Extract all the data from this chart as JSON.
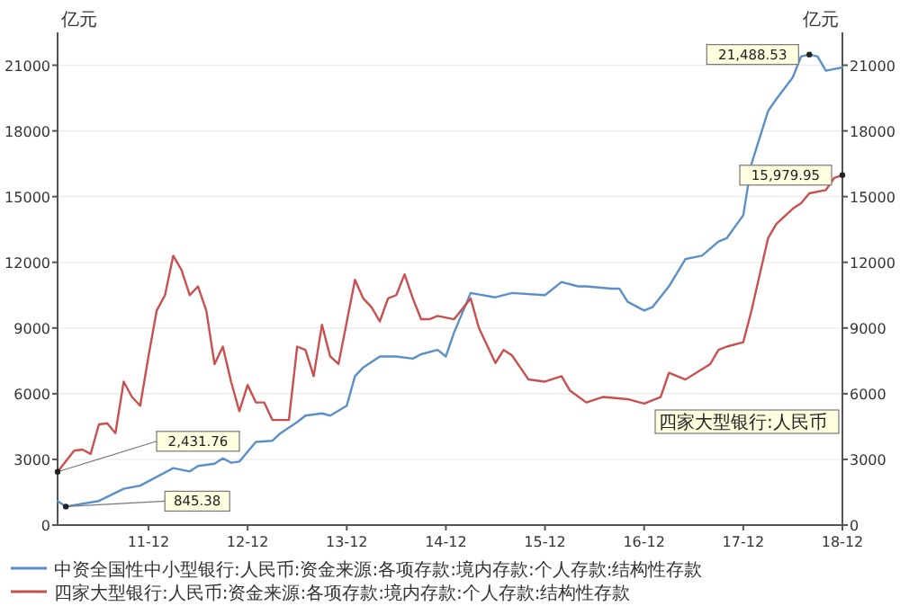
{
  "chart_data": {
    "type": "line",
    "ylabel": "亿元",
    "y2label": "亿元",
    "xlim": [
      "2011-01",
      "2018-12"
    ],
    "xticks": [
      {
        "value": "2011-12",
        "label": "11-12"
      },
      {
        "value": "2012-12",
        "label": "12-12"
      },
      {
        "value": "2013-12",
        "label": "13-12"
      },
      {
        "value": "2014-12",
        "label": "14-12"
      },
      {
        "value": "2015-12",
        "label": "15-12"
      },
      {
        "value": "2016-12",
        "label": "16-12"
      },
      {
        "value": "2017-12",
        "label": "17-12"
      },
      {
        "value": "2018-12",
        "label": "18-12"
      }
    ],
    "ylim": [
      0,
      22500
    ],
    "yticks": [
      0,
      3000,
      6000,
      9000,
      12000,
      15000,
      18000,
      21000
    ],
    "y2lim": [
      0,
      22500
    ],
    "y2ticks": [
      0,
      3000,
      6000,
      9000,
      12000,
      15000,
      18000,
      21000
    ],
    "grid": "y",
    "legend": "bottom",
    "line_style": "solid",
    "marker": "none",
    "series": [
      {
        "name": "中资全国性中小型银行:人民币:资金来源:各项存款:境内存款:个人存款:结构性存款",
        "color": "#5b8fc9",
        "x": [
          "2011-01",
          "2011-02",
          "2011-06",
          "2011-09",
          "2011-11",
          "2012-01",
          "2012-03",
          "2012-05",
          "2012-06",
          "2012-08",
          "2012-09",
          "2012-10",
          "2012-11",
          "2013-01",
          "2013-03",
          "2013-04",
          "2013-06",
          "2013-07",
          "2013-09",
          "2013-10",
          "2013-12",
          "2014-01",
          "2014-02",
          "2014-04",
          "2014-06",
          "2014-08",
          "2014-09",
          "2014-11",
          "2014-12",
          "2015-01",
          "2015-03",
          "2015-06",
          "2015-08",
          "2015-12",
          "2016-02",
          "2016-04",
          "2016-05",
          "2016-08",
          "2016-09",
          "2016-10",
          "2016-12",
          "2017-01",
          "2017-03",
          "2017-05",
          "2017-07",
          "2017-09",
          "2017-10",
          "2017-12",
          "2018-01",
          "2018-03",
          "2018-04",
          "2018-06",
          "2018-07",
          "2018-08",
          "2018-09",
          "2018-10",
          "2018-12"
        ],
        "values": [
          1100,
          845.38,
          1100,
          1660,
          1800,
          2200,
          2600,
          2450,
          2700,
          2800,
          3050,
          2850,
          2900,
          3800,
          3850,
          4200,
          4700,
          5000,
          5100,
          5000,
          5450,
          6800,
          7200,
          7700,
          7700,
          7600,
          7800,
          8000,
          7700,
          8800,
          10600,
          10400,
          10600,
          10500,
          11100,
          10900,
          10900,
          10800,
          10800,
          10200,
          9800,
          9950,
          10900,
          12150,
          12300,
          12950,
          13100,
          14150,
          16500,
          18900,
          19450,
          20450,
          21400,
          21488.53,
          21400,
          20750,
          20900
        ]
      },
      {
        "name": "四家大型银行:人民币:资金来源:各项存款:境内存款:个人存款:结构性存款",
        "color": "#c8504f",
        "x": [
          "2011-01",
          "2011-03",
          "2011-04",
          "2011-05",
          "2011-06",
          "2011-07",
          "2011-08",
          "2011-09",
          "2011-10",
          "2011-11",
          "2011-12",
          "2012-01",
          "2012-02",
          "2012-03",
          "2012-04",
          "2012-05",
          "2012-06",
          "2012-07",
          "2012-08",
          "2012-09",
          "2012-10",
          "2012-11",
          "2012-12",
          "2013-01",
          "2013-02",
          "2013-03",
          "2013-05",
          "2013-06",
          "2013-07",
          "2013-08",
          "2013-09",
          "2013-10",
          "2013-11",
          "2014-01",
          "2014-02",
          "2014-03",
          "2014-04",
          "2014-05",
          "2014-06",
          "2014-07",
          "2014-08",
          "2014-09",
          "2014-10",
          "2014-11",
          "2015-01",
          "2015-03",
          "2015-04",
          "2015-06",
          "2015-07",
          "2015-08",
          "2015-09",
          "2015-10",
          "2015-12",
          "2016-02",
          "2016-03",
          "2016-05",
          "2016-07",
          "2016-10",
          "2016-12",
          "2017-02",
          "2017-03",
          "2017-05",
          "2017-08",
          "2017-09",
          "2017-10",
          "2017-12",
          "2018-01",
          "2018-03",
          "2018-04",
          "2018-06",
          "2018-07",
          "2018-08",
          "2018-10",
          "2018-11",
          "2018-12"
        ],
        "values": [
          2431.76,
          3400,
          3450,
          3250,
          4600,
          4650,
          4200,
          6550,
          5850,
          5450,
          7700,
          9800,
          10500,
          12300,
          11650,
          10500,
          10900,
          9800,
          7350,
          8150,
          6550,
          5200,
          6400,
          5600,
          5600,
          4800,
          4800,
          8150,
          8000,
          6800,
          9150,
          7700,
          7350,
          11200,
          10350,
          9950,
          9300,
          10350,
          10500,
          11450,
          10350,
          9400,
          9400,
          9550,
          9400,
          10350,
          9000,
          7400,
          8000,
          7750,
          7200,
          6650,
          6550,
          6800,
          6150,
          5600,
          5850,
          5750,
          5550,
          5850,
          6950,
          6650,
          7350,
          8000,
          8150,
          8350,
          9800,
          13100,
          13750,
          14450,
          14700,
          15150,
          15300,
          15850,
          15979.95
        ]
      }
    ],
    "annotations": [
      {
        "text": "2,431.76",
        "x": "2011-01",
        "y": 2431.76
      },
      {
        "text": "845.38",
        "x": "2011-02",
        "y": 845.38
      },
      {
        "text": "21,488.53",
        "x": "2018-08",
        "y": 21488.53
      },
      {
        "text": "15,979.95",
        "x": "2018-12",
        "y": 15979.95
      },
      "四家大型银行:人民币"
    ]
  }
}
